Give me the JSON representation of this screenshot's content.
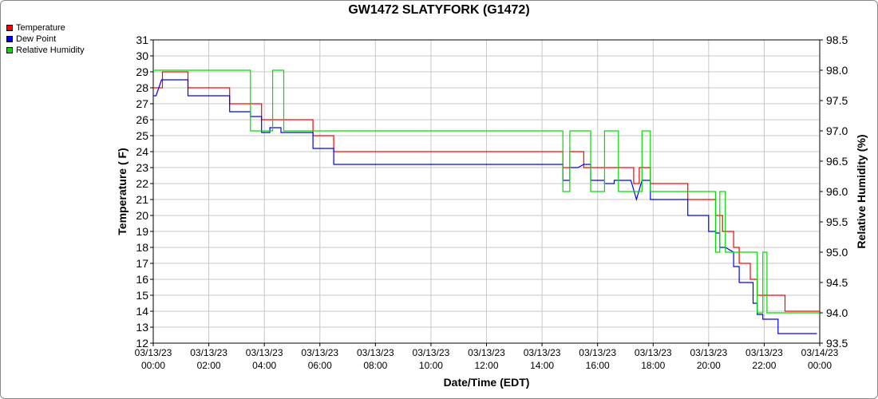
{
  "chart_data": {
    "type": "line",
    "title": "GW1472 SLATYFORK (G1472)",
    "xlabel": "Date/Time (EDT)",
    "ylabel": "Temperature ( F)",
    "y2label": "Relative Humidity (%)",
    "xlim": [
      0,
      24
    ],
    "ylim": [
      12,
      31
    ],
    "y2lim": [
      93.5,
      98.5
    ],
    "x_ticks": [
      {
        "x": 0,
        "date": "03/13/23",
        "time": "00:00"
      },
      {
        "x": 2,
        "date": "03/13/23",
        "time": "02:00"
      },
      {
        "x": 4,
        "date": "03/13/23",
        "time": "04:00"
      },
      {
        "x": 6,
        "date": "03/13/23",
        "time": "06:00"
      },
      {
        "x": 8,
        "date": "03/13/23",
        "time": "08:00"
      },
      {
        "x": 10,
        "date": "03/13/23",
        "time": "10:00"
      },
      {
        "x": 12,
        "date": "03/13/23",
        "time": "12:00"
      },
      {
        "x": 14,
        "date": "03/13/23",
        "time": "14:00"
      },
      {
        "x": 16,
        "date": "03/13/23",
        "time": "16:00"
      },
      {
        "x": 18,
        "date": "03/13/23",
        "time": "18:00"
      },
      {
        "x": 20,
        "date": "03/13/23",
        "time": "20:00"
      },
      {
        "x": 22,
        "date": "03/13/23",
        "time": "22:00"
      },
      {
        "x": 24,
        "date": "03/14/23",
        "time": "00:00"
      }
    ],
    "y_ticks": [
      "12",
      "13",
      "14",
      "15",
      "16",
      "17",
      "18",
      "19",
      "20",
      "21",
      "22",
      "23",
      "24",
      "25",
      "26",
      "27",
      "28",
      "29",
      "30",
      "31"
    ],
    "y2_ticks": [
      "93.5",
      "94.0",
      "94.5",
      "95.0",
      "95.5",
      "96.0",
      "96.5",
      "97.0",
      "97.5",
      "98.0",
      "98.5"
    ],
    "grid": true,
    "legend_position": "top-left",
    "series": [
      {
        "name": "Temperature",
        "axis": "left",
        "color": "#ff0000",
        "points": [
          [
            0.0,
            28
          ],
          [
            0.33,
            28
          ],
          [
            0.33,
            29
          ],
          [
            1.25,
            29
          ],
          [
            1.25,
            28
          ],
          [
            2.75,
            28
          ],
          [
            2.75,
            27
          ],
          [
            3.9,
            27
          ],
          [
            3.9,
            26
          ],
          [
            5.75,
            26
          ],
          [
            5.75,
            25
          ],
          [
            6.5,
            25
          ],
          [
            6.5,
            24
          ],
          [
            14.75,
            24
          ],
          [
            14.75,
            23
          ],
          [
            15.0,
            23
          ],
          [
            15.0,
            24
          ],
          [
            15.5,
            24
          ],
          [
            15.5,
            23
          ],
          [
            17.3,
            23
          ],
          [
            17.3,
            22
          ],
          [
            17.5,
            22
          ],
          [
            17.5,
            23
          ],
          [
            17.9,
            23
          ],
          [
            17.9,
            22
          ],
          [
            19.25,
            22
          ],
          [
            19.25,
            21
          ],
          [
            20.25,
            21
          ],
          [
            20.25,
            20
          ],
          [
            20.5,
            20
          ],
          [
            20.5,
            19
          ],
          [
            20.9,
            19
          ],
          [
            20.9,
            18
          ],
          [
            21.1,
            18
          ],
          [
            21.1,
            17
          ],
          [
            21.5,
            17
          ],
          [
            21.5,
            16
          ],
          [
            21.75,
            16
          ],
          [
            21.75,
            15
          ],
          [
            22.75,
            15
          ],
          [
            22.75,
            14
          ],
          [
            24.0,
            14
          ]
        ]
      },
      {
        "name": "Dew Point",
        "axis": "left",
        "color": "#0000ff",
        "points": [
          [
            0.0,
            27.5
          ],
          [
            0.1,
            27.5
          ],
          [
            0.3,
            28.5
          ],
          [
            1.25,
            28.5
          ],
          [
            1.25,
            27.5
          ],
          [
            2.75,
            27.5
          ],
          [
            2.75,
            26.5
          ],
          [
            3.5,
            26.5
          ],
          [
            3.5,
            26.2
          ],
          [
            3.9,
            26.2
          ],
          [
            3.9,
            25.2
          ],
          [
            4.2,
            25.2
          ],
          [
            4.2,
            25.5
          ],
          [
            4.6,
            25.5
          ],
          [
            4.6,
            25.2
          ],
          [
            5.75,
            25.2
          ],
          [
            5.75,
            24.2
          ],
          [
            6.5,
            24.2
          ],
          [
            6.5,
            23.2
          ],
          [
            14.75,
            23.2
          ],
          [
            14.75,
            22.2
          ],
          [
            15.0,
            22.2
          ],
          [
            15.0,
            23.0
          ],
          [
            15.3,
            23.0
          ],
          [
            15.5,
            23.2
          ],
          [
            15.75,
            23.2
          ],
          [
            15.75,
            22.2
          ],
          [
            16.25,
            22.2
          ],
          [
            16.25,
            22.0
          ],
          [
            16.6,
            22.0
          ],
          [
            16.6,
            22.2
          ],
          [
            17.2,
            22.2
          ],
          [
            17.4,
            21.0
          ],
          [
            17.6,
            22.2
          ],
          [
            17.9,
            22.2
          ],
          [
            17.9,
            21.0
          ],
          [
            19.25,
            21.0
          ],
          [
            19.25,
            20.0
          ],
          [
            20.0,
            20.0
          ],
          [
            20.0,
            19.0
          ],
          [
            20.25,
            19.0
          ],
          [
            20.25,
            18.9
          ],
          [
            20.4,
            18.9
          ],
          [
            20.4,
            18.0
          ],
          [
            20.6,
            18.0
          ],
          [
            20.9,
            17.7
          ],
          [
            20.9,
            16.8
          ],
          [
            21.1,
            16.8
          ],
          [
            21.1,
            15.8
          ],
          [
            21.6,
            15.8
          ],
          [
            21.6,
            14.5
          ],
          [
            21.75,
            14.5
          ],
          [
            21.75,
            13.8
          ],
          [
            21.95,
            13.8
          ],
          [
            21.95,
            13.5
          ],
          [
            22.5,
            13.5
          ],
          [
            22.5,
            12.6
          ],
          [
            23.9,
            12.6
          ]
        ]
      },
      {
        "name": "Relative Humidity",
        "axis": "right",
        "color": "#00dd00",
        "points": [
          [
            0.0,
            98.0
          ],
          [
            3.5,
            98.0
          ],
          [
            3.5,
            97.0
          ],
          [
            4.3,
            97.0
          ],
          [
            4.3,
            98.0
          ],
          [
            4.7,
            98.0
          ],
          [
            4.7,
            97.0
          ],
          [
            14.75,
            97.0
          ],
          [
            14.75,
            96.0
          ],
          [
            15.0,
            96.0
          ],
          [
            15.0,
            97.0
          ],
          [
            15.75,
            97.0
          ],
          [
            15.75,
            96.0
          ],
          [
            16.25,
            96.0
          ],
          [
            16.25,
            97.0
          ],
          [
            16.75,
            97.0
          ],
          [
            16.75,
            96.0
          ],
          [
            17.6,
            96.0
          ],
          [
            17.6,
            97.0
          ],
          [
            17.9,
            97.0
          ],
          [
            17.9,
            96.0
          ],
          [
            20.25,
            96.0
          ],
          [
            20.25,
            95.0
          ],
          [
            20.4,
            95.0
          ],
          [
            20.4,
            96.0
          ],
          [
            20.6,
            96.0
          ],
          [
            20.6,
            95.0
          ],
          [
            21.75,
            95.0
          ],
          [
            21.75,
            94.0
          ],
          [
            21.95,
            94.0
          ],
          [
            21.95,
            95.0
          ],
          [
            22.1,
            95.0
          ],
          [
            22.1,
            94.0
          ],
          [
            24.0,
            94.0
          ]
        ]
      }
    ]
  }
}
